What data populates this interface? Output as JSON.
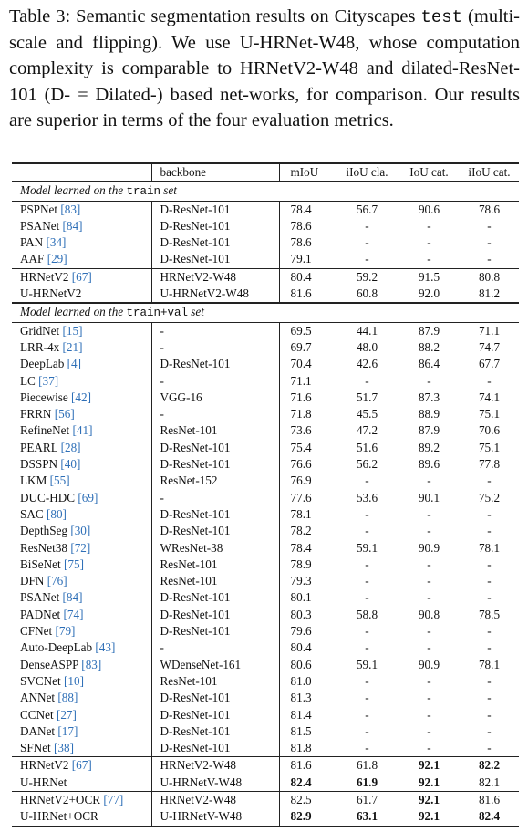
{
  "caption": {
    "p1": "Table 3:  Semantic segmentation results on Cityscapes",
    "mono": "test",
    "p2": " (multi-scale and flipping).  We use U-HRNet-W48, whose computation complexity is comparable to HRNetV2-W48 and dilated-ResNet-101 (D- = Dilated-) based net-works, for comparison.  Our results are superior in terms of the four evaluation metrics."
  },
  "headers": [
    "",
    "backbone",
    "mIoU",
    "iIoU cla.",
    "IoU cat.",
    "iIoU cat."
  ],
  "sections": {
    "train": {
      "pre": "Model learned on the ",
      "mono": "train",
      "post": " set"
    },
    "trainval": {
      "pre": "Model learned on the ",
      "mono": "train+val",
      "post": " set"
    }
  },
  "colors": {
    "ref": "#2e6fb7",
    "rule": "#222222"
  },
  "g1": [
    {
      "name": "PSPNet",
      "ref": "[83]",
      "backbone": "D-ResNet-101",
      "miou": "78.4",
      "iicla": "56.7",
      "iocat": "90.6",
      "iicat": "78.6"
    },
    {
      "name": "PSANet",
      "ref": "[84]",
      "backbone": "D-ResNet-101",
      "miou": "78.6",
      "iicla": "-",
      "iocat": "-",
      "iicat": "-"
    },
    {
      "name": "PAN",
      "ref": "[34]",
      "backbone": "D-ResNet-101",
      "miou": "78.6",
      "iicla": "-",
      "iocat": "-",
      "iicat": "-"
    },
    {
      "name": "AAF",
      "ref": "[29]",
      "backbone": "D-ResNet-101",
      "miou": "79.1",
      "iicla": "-",
      "iocat": "-",
      "iicat": "-"
    }
  ],
  "g2": [
    {
      "name": "HRNetV2",
      "ref": "[67]",
      "backbone": "HRNetV2-W48",
      "miou": "80.4",
      "iicla": "59.2",
      "iocat": "91.5",
      "iicat": "80.8"
    },
    {
      "name": "U-HRNetV2",
      "ref": "",
      "backbone": "U-HRNetV2-W48",
      "miou": "81.6",
      "iicla": "60.8",
      "iocat": "92.0",
      "iicat": "81.2"
    }
  ],
  "g3": [
    {
      "name": "GridNet",
      "ref": "[15]",
      "backbone": "-",
      "miou": "69.5",
      "iicla": "44.1",
      "iocat": "87.9",
      "iicat": "71.1"
    },
    {
      "name": "LRR-4x",
      "ref": "[21]",
      "backbone": "-",
      "miou": "69.7",
      "iicla": "48.0",
      "iocat": "88.2",
      "iicat": "74.7"
    },
    {
      "name": "DeepLab",
      "ref": "[4]",
      "backbone": "D-ResNet-101",
      "miou": "70.4",
      "iicla": "42.6",
      "iocat": "86.4",
      "iicat": "67.7"
    },
    {
      "name": "LC",
      "ref": "[37]",
      "backbone": "-",
      "miou": "71.1",
      "iicla": "-",
      "iocat": "-",
      "iicat": "-"
    },
    {
      "name": "Piecewise",
      "ref": "[42]",
      "backbone": "VGG-16",
      "miou": "71.6",
      "iicla": "51.7",
      "iocat": "87.3",
      "iicat": "74.1"
    },
    {
      "name": "FRRN",
      "ref": "[56]",
      "backbone": "-",
      "miou": "71.8",
      "iicla": "45.5",
      "iocat": "88.9",
      "iicat": "75.1"
    },
    {
      "name": "RefineNet",
      "ref": "[41]",
      "backbone": "ResNet-101",
      "miou": "73.6",
      "iicla": "47.2",
      "iocat": "87.9",
      "iicat": "70.6"
    },
    {
      "name": "PEARL",
      "ref": "[28]",
      "backbone": "D-ResNet-101",
      "miou": "75.4",
      "iicla": "51.6",
      "iocat": "89.2",
      "iicat": "75.1"
    },
    {
      "name": "DSSPN",
      "ref": "[40]",
      "backbone": "D-ResNet-101",
      "miou": "76.6",
      "iicla": "56.2",
      "iocat": "89.6",
      "iicat": "77.8"
    },
    {
      "name": "LKM",
      "ref": "[55]",
      "backbone": "ResNet-152",
      "miou": "76.9",
      "iicla": "-",
      "iocat": "-",
      "iicat": "-"
    },
    {
      "name": "DUC-HDC",
      "ref": "[69]",
      "backbone": "-",
      "miou": "77.6",
      "iicla": "53.6",
      "iocat": "90.1",
      "iicat": "75.2"
    },
    {
      "name": "SAC",
      "ref": "[80]",
      "backbone": "D-ResNet-101",
      "miou": "78.1",
      "iicla": "-",
      "iocat": "-",
      "iicat": "-"
    },
    {
      "name": "DepthSeg",
      "ref": "[30]",
      "backbone": "D-ResNet-101",
      "miou": "78.2",
      "iicla": "-",
      "iocat": "-",
      "iicat": "-"
    },
    {
      "name": "ResNet38",
      "ref": "[72]",
      "backbone": "WResNet-38",
      "miou": "78.4",
      "iicla": "59.1",
      "iocat": "90.9",
      "iicat": "78.1"
    },
    {
      "name": "BiSeNet",
      "ref": "[75]",
      "backbone": "ResNet-101",
      "miou": "78.9",
      "iicla": "-",
      "iocat": "-",
      "iicat": "-"
    },
    {
      "name": "DFN",
      "ref": "[76]",
      "backbone": "ResNet-101",
      "miou": "79.3",
      "iicla": "-",
      "iocat": "-",
      "iicat": "-"
    },
    {
      "name": "PSANet",
      "ref": "[84]",
      "backbone": "D-ResNet-101",
      "miou": "80.1",
      "iicla": "-",
      "iocat": "-",
      "iicat": "-"
    },
    {
      "name": "PADNet",
      "ref": "[74]",
      "backbone": "D-ResNet-101",
      "miou": "80.3",
      "iicla": "58.8",
      "iocat": "90.8",
      "iicat": "78.5"
    },
    {
      "name": "CFNet",
      "ref": "[79]",
      "backbone": "D-ResNet-101",
      "miou": "79.6",
      "iicla": "-",
      "iocat": "-",
      "iicat": "-"
    },
    {
      "name": "Auto-DeepLab",
      "ref": "[43]",
      "backbone": "-",
      "miou": "80.4",
      "iicla": "-",
      "iocat": "-",
      "iicat": "-"
    },
    {
      "name": "DenseASPP",
      "ref": "[83]",
      "backbone": "WDenseNet-161",
      "miou": "80.6",
      "iicla": "59.1",
      "iocat": "90.9",
      "iicat": "78.1"
    },
    {
      "name": "SVCNet",
      "ref": "[10]",
      "backbone": "ResNet-101",
      "miou": "81.0",
      "iicla": "-",
      "iocat": "-",
      "iicat": "-"
    },
    {
      "name": "ANNet",
      "ref": "[88]",
      "backbone": "D-ResNet-101",
      "miou": "81.3",
      "iicla": "-",
      "iocat": "-",
      "iicat": "-"
    },
    {
      "name": "CCNet",
      "ref": "[27]",
      "backbone": "D-ResNet-101",
      "miou": "81.4",
      "iicla": "-",
      "iocat": "-",
      "iicat": "-"
    },
    {
      "name": "DANet",
      "ref": "[17]",
      "backbone": "D-ResNet-101",
      "miou": "81.5",
      "iicla": "-",
      "iocat": "-",
      "iicat": "-"
    },
    {
      "name": "SFNet",
      "ref": "[38]",
      "backbone": "D-ResNet-101",
      "miou": "81.8",
      "iicla": "-",
      "iocat": "-",
      "iicat": "-"
    }
  ],
  "g4": [
    {
      "name": "HRNetV2",
      "ref": "[67]",
      "backbone": "HRNetV2-W48",
      "miou": "81.6",
      "iicla": "61.8",
      "iocat": "92.1",
      "iicat": "82.2",
      "bold": [
        "iocat",
        "iicat"
      ]
    },
    {
      "name": "U-HRNet",
      "ref": "",
      "backbone": "U-HRNetV-W48",
      "miou": "82.4",
      "iicla": "61.9",
      "iocat": "92.1",
      "iicat": "82.1",
      "bold": [
        "miou",
        "iicla",
        "iocat"
      ]
    }
  ],
  "g5": [
    {
      "name": "HRNetV2+OCR",
      "ref": "[77]",
      "backbone": "HRNetV2-W48",
      "miou": "82.5",
      "iicla": "61.7",
      "iocat": "92.1",
      "iicat": "81.6",
      "bold": [
        "iocat"
      ]
    },
    {
      "name": "U-HRNet+OCR",
      "ref": "",
      "backbone": "U-HRNetV-W48",
      "miou": "82.9",
      "iicla": "63.1",
      "iocat": "92.1",
      "iicat": "82.4",
      "bold": [
        "miou",
        "iicla",
        "iocat",
        "iicat"
      ]
    }
  ]
}
